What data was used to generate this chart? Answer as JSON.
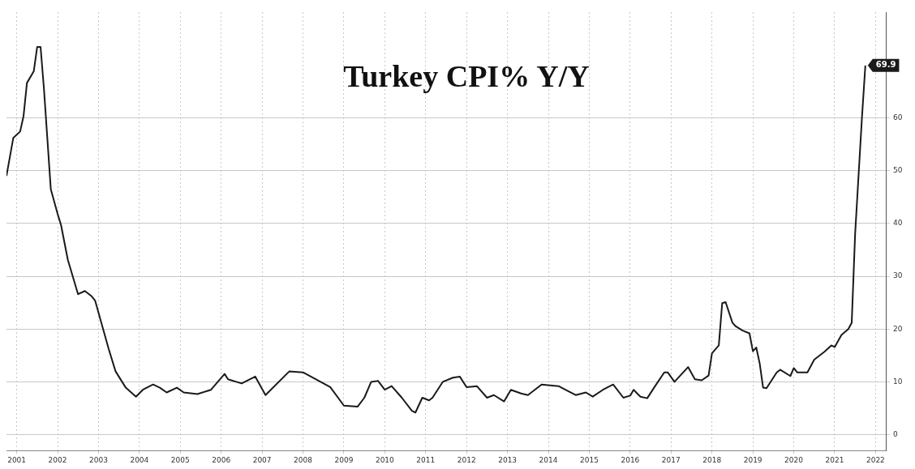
{
  "chart_data": {
    "type": "line",
    "title": "Turkey CPI% Y/Y",
    "x": [
      "2001-04",
      "2001-06",
      "2001-08",
      "2001-09",
      "2001-10",
      "2001-12",
      "2002-01",
      "2002-02",
      "2002-03",
      "2002-05",
      "2002-07",
      "2002-08",
      "2002-10",
      "2003-01",
      "2003-03",
      "2003-05",
      "2003-06",
      "2003-10",
      "2003-12",
      "2004-03",
      "2004-06",
      "2004-08",
      "2004-11",
      "2005-01",
      "2005-03",
      "2005-06",
      "2005-08",
      "2005-12",
      "2006-04",
      "2006-06",
      "2006-08",
      "2006-09",
      "2007-01",
      "2007-05",
      "2007-08",
      "2008-03",
      "2008-07",
      "2009-03",
      "2009-07",
      "2009-11",
      "2010-01",
      "2010-03",
      "2010-05",
      "2010-07",
      "2010-09",
      "2010-12",
      "2011-03",
      "2011-04",
      "2011-06",
      "2011-08",
      "2011-09",
      "2011-12",
      "2012-03",
      "2012-05",
      "2012-07",
      "2012-10",
      "2013-01",
      "2013-03",
      "2013-06",
      "2013-08",
      "2013-11",
      "2014-01",
      "2014-05",
      "2014-10",
      "2014-12",
      "2015-03",
      "2015-06",
      "2015-08",
      "2015-11",
      "2016-02",
      "2016-05",
      "2016-07",
      "2016-08",
      "2016-10",
      "2016-12",
      "2017-02",
      "2017-05",
      "2017-06",
      "2017-08",
      "2017-12",
      "2018-02",
      "2018-04",
      "2018-06",
      "2018-07",
      "2018-09",
      "2018-10",
      "2018-11",
      "2019-01",
      "2019-02",
      "2019-04",
      "2019-06",
      "2019-07",
      "2019-08",
      "2019-09",
      "2019-10",
      "2019-11",
      "2020-02",
      "2020-03",
      "2020-06",
      "2020-07",
      "2020-08",
      "2020-11",
      "2021-01",
      "2021-04",
      "2021-06",
      "2021-07",
      "2021-09",
      "2021-11",
      "2021-12",
      "2022-01",
      "2022-02",
      "2022-03",
      "2022-04"
    ],
    "series": [
      {
        "color": "#1a1a1a",
        "values": [
          49.0,
          56.2,
          57.4,
          60.3,
          66.6,
          68.8,
          73.4,
          73.4,
          65.4,
          46.5,
          41.8,
          39.7,
          33.1,
          26.6,
          27.2,
          26.2,
          25.4,
          16.2,
          12.0,
          8.9,
          7.2,
          8.5,
          9.5,
          8.9,
          8.0,
          8.9,
          8.0,
          7.7,
          8.5,
          10.0,
          11.5,
          10.5,
          9.7,
          11.0,
          7.5,
          12.0,
          11.8,
          9.0,
          5.5,
          5.3,
          7.0,
          10.0,
          10.2,
          8.5,
          9.2,
          7.0,
          4.5,
          4.2,
          7.0,
          6.5,
          7.0,
          10.0,
          10.8,
          11.0,
          9.0,
          9.2,
          7.0,
          7.5,
          6.3,
          8.5,
          7.8,
          7.5,
          9.5,
          9.2,
          8.5,
          7.5,
          8.0,
          7.2,
          8.5,
          9.5,
          7.0,
          7.4,
          8.5,
          7.2,
          6.9,
          8.9,
          11.8,
          11.8,
          10.0,
          12.8,
          10.5,
          10.3,
          11.2,
          15.4,
          16.9,
          24.9,
          25.1,
          21.2,
          20.5,
          19.7,
          19.2,
          15.8,
          16.5,
          13.5,
          8.9,
          8.8,
          11.8,
          12.3,
          11.1,
          12.6,
          11.8,
          11.8,
          14.2,
          15.7,
          16.9,
          16.6,
          18.9,
          20.0,
          21.2,
          38.0,
          49.0,
          60.0,
          69.9
        ],
        "value_labels": [
          null,
          null,
          null,
          null,
          null,
          null,
          null,
          null,
          null,
          null,
          null,
          null,
          null,
          null,
          null,
          null,
          null,
          null,
          null,
          null,
          null,
          null,
          null,
          null,
          null,
          null,
          null,
          null,
          null,
          null,
          null,
          null,
          null,
          null,
          null,
          null,
          null,
          null,
          null,
          null,
          null,
          null,
          null,
          null,
          null,
          null,
          null,
          null,
          null,
          null,
          null,
          null,
          null,
          null,
          null,
          null,
          null,
          null,
          null,
          null,
          null,
          null,
          null,
          null,
          null,
          null,
          null,
          null,
          null,
          null,
          null,
          null,
          null,
          null,
          null,
          null,
          null,
          null,
          null,
          null,
          null,
          null,
          null,
          null,
          null,
          null,
          null,
          null,
          null,
          null,
          null,
          null,
          null,
          null,
          null,
          null,
          null,
          null,
          null,
          null,
          null,
          null,
          null,
          null,
          null,
          null,
          null,
          null,
          null,
          null,
          null,
          null,
          "69.9"
        ]
      }
    ],
    "xlim": [
      "2001-04",
      "2022-10"
    ],
    "xticks": [
      {
        "value": "2001-07",
        "label": "2001"
      },
      {
        "value": "2002-07",
        "label": "2002"
      },
      {
        "value": "2003-07",
        "label": "2003"
      },
      {
        "value": "2004-07",
        "label": "2004"
      },
      {
        "value": "2005-07",
        "label": "2005"
      },
      {
        "value": "2006-07",
        "label": "2006"
      },
      {
        "value": "2007-07",
        "label": "2007"
      },
      {
        "value": "2008-07",
        "label": "2008"
      },
      {
        "value": "2009-07",
        "label": "2009"
      },
      {
        "value": "2010-07",
        "label": "2010"
      },
      {
        "value": "2011-07",
        "label": "2011"
      },
      {
        "value": "2012-07",
        "label": "2012"
      },
      {
        "value": "2013-07",
        "label": "2013"
      },
      {
        "value": "2014-07",
        "label": "2014"
      },
      {
        "value": "2015-07",
        "label": "2015"
      },
      {
        "value": "2016-07",
        "label": "2016"
      },
      {
        "value": "2017-07",
        "label": "2017"
      },
      {
        "value": "2018-07",
        "label": "2018"
      },
      {
        "value": "2019-07",
        "label": "2019"
      },
      {
        "value": "2020-07",
        "label": "2020"
      },
      {
        "value": "2021-07",
        "label": "2021"
      },
      {
        "value": "2022-07",
        "label": "2022"
      }
    ],
    "ylim": [
      -3,
      80
    ],
    "yticks": [
      0,
      10,
      20,
      30,
      40,
      50,
      60
    ],
    "grid": true,
    "legend": false,
    "marker": "none",
    "line_style": "solid"
  }
}
